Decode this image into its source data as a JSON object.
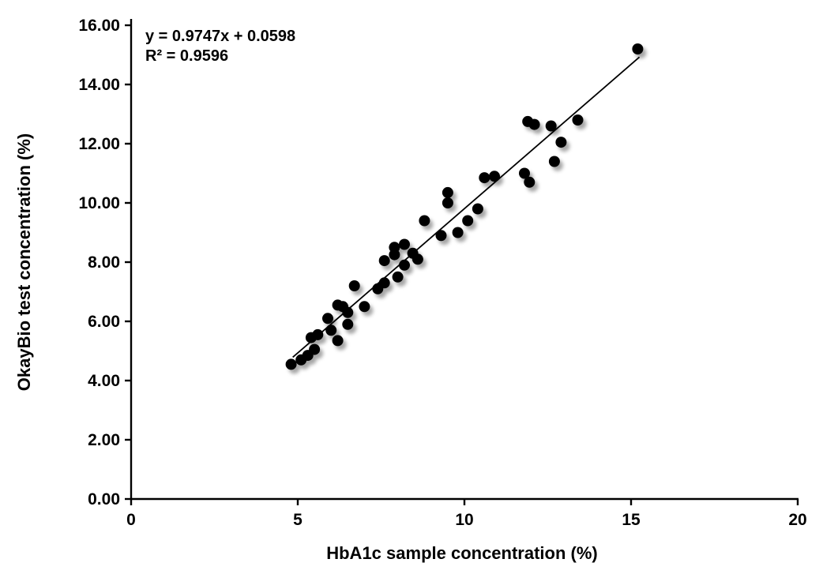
{
  "chart_data": {
    "type": "scatter",
    "title": "",
    "xlabel": "HbA1c sample concentration (%)",
    "ylabel": "OkayBio test concentration (%)",
    "xlim": [
      0,
      20
    ],
    "ylim": [
      0,
      16
    ],
    "grid": false,
    "legend": "none",
    "x_ticks": [
      {
        "value": 0,
        "label": "0"
      },
      {
        "value": 5,
        "label": "5"
      },
      {
        "value": 10,
        "label": "10"
      },
      {
        "value": 15,
        "label": "15"
      },
      {
        "value": 20,
        "label": "20"
      }
    ],
    "y_ticks": [
      {
        "value": 0,
        "label": "0.00"
      },
      {
        "value": 2,
        "label": "2.00"
      },
      {
        "value": 4,
        "label": "4.00"
      },
      {
        "value": 6,
        "label": "6.00"
      },
      {
        "value": 8,
        "label": "8.00"
      },
      {
        "value": 10,
        "label": "10.00"
      },
      {
        "value": 12,
        "label": "12.00"
      },
      {
        "value": 14,
        "label": "14.00"
      },
      {
        "value": 16,
        "label": "16.00"
      }
    ],
    "annotation": {
      "equation": "y = 0.9747x + 0.0598",
      "r_squared": "R² = 0.9596"
    },
    "trendline": {
      "slope": 0.9747,
      "intercept": 0.0598,
      "x_start": 4.85,
      "x_end": 15.25,
      "color": "#000000"
    },
    "point_color": "#000000",
    "points": [
      [
        4.8,
        4.55
      ],
      [
        5.1,
        4.7
      ],
      [
        5.3,
        4.85
      ],
      [
        5.5,
        5.05
      ],
      [
        5.4,
        5.45
      ],
      [
        5.6,
        5.55
      ],
      [
        6.0,
        5.7
      ],
      [
        6.2,
        5.35
      ],
      [
        5.9,
        6.1
      ],
      [
        6.5,
        5.9
      ],
      [
        6.2,
        6.55
      ],
      [
        6.35,
        6.5
      ],
      [
        6.5,
        6.3
      ],
      [
        7.0,
        6.5
      ],
      [
        6.7,
        7.2
      ],
      [
        7.4,
        7.1
      ],
      [
        7.6,
        7.3
      ],
      [
        7.6,
        8.05
      ],
      [
        7.9,
        8.25
      ],
      [
        7.9,
        8.5
      ],
      [
        8.0,
        7.5
      ],
      [
        8.2,
        8.6
      ],
      [
        8.2,
        7.9
      ],
      [
        8.45,
        8.3
      ],
      [
        8.6,
        8.1
      ],
      [
        8.8,
        9.4
      ],
      [
        9.3,
        8.9
      ],
      [
        9.8,
        9.0
      ],
      [
        9.5,
        10.0
      ],
      [
        9.5,
        10.35
      ],
      [
        10.1,
        9.4
      ],
      [
        10.4,
        9.8
      ],
      [
        10.6,
        10.85
      ],
      [
        10.9,
        10.9
      ],
      [
        11.8,
        11.0
      ],
      [
        11.95,
        10.7
      ],
      [
        11.9,
        12.75
      ],
      [
        12.1,
        12.65
      ],
      [
        12.6,
        12.6
      ],
      [
        12.9,
        12.05
      ],
      [
        12.7,
        11.4
      ],
      [
        13.4,
        12.8
      ],
      [
        15.2,
        15.2
      ]
    ]
  }
}
